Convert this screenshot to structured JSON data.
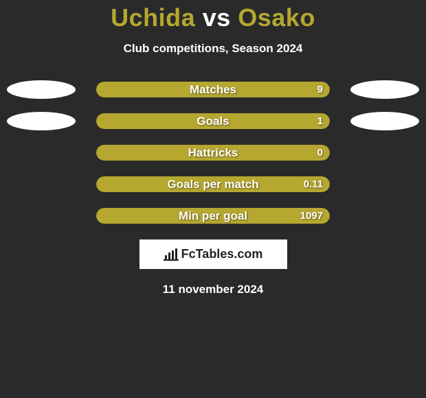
{
  "title_color": "#b5a730",
  "title_parts": {
    "left": "Uchida",
    "vs": "vs",
    "right": "Osako"
  },
  "subtitle": "Club competitions, Season 2024",
  "bar_color": "#b5a730",
  "track_width": 340,
  "stats": [
    {
      "label": "Matches",
      "value": "9",
      "fill_pct": 100,
      "left_ellipse": true,
      "right_ellipse": true
    },
    {
      "label": "Goals",
      "value": "1",
      "fill_pct": 100,
      "left_ellipse": true,
      "right_ellipse": true
    },
    {
      "label": "Hattricks",
      "value": "0",
      "fill_pct": 100,
      "left_ellipse": false,
      "right_ellipse": false
    },
    {
      "label": "Goals per match",
      "value": "0.11",
      "fill_pct": 100,
      "left_ellipse": false,
      "right_ellipse": false
    },
    {
      "label": "Min per goal",
      "value": "1097",
      "fill_pct": 100,
      "left_ellipse": false,
      "right_ellipse": false
    }
  ],
  "logo_text": "FcTables.com",
  "date_text": "11 november 2024"
}
